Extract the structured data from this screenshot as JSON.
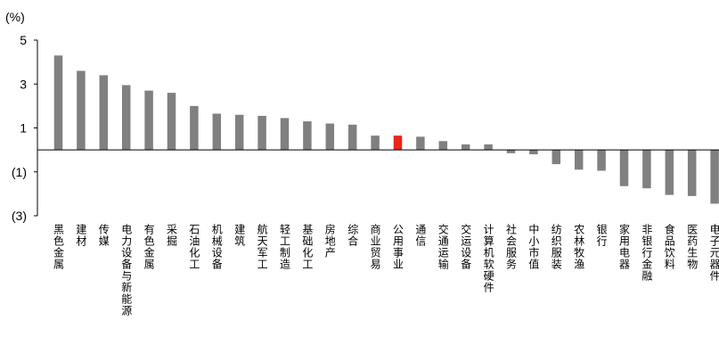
{
  "chart_data": {
    "type": "bar",
    "unit_label": "(%)",
    "title": "",
    "xlabel": "",
    "ylabel": "",
    "ylim": [
      -3,
      5
    ],
    "yticks": [
      5,
      3,
      1,
      -1,
      -3
    ],
    "ytick_labels": [
      "5",
      "3",
      "1",
      "(1)",
      "(3)"
    ],
    "grid": false,
    "legend": "none",
    "colors": {
      "default": "#808080",
      "highlight": "#e8261a"
    },
    "highlight_category": "公用事业",
    "categories": [
      "黑色金属",
      "建材",
      "传媒",
      "电力设备与新能源",
      "有色金属",
      "采掘",
      "石油化工",
      "机械设备",
      "建筑",
      "航天军工",
      "轻工制造",
      "基础化工",
      "房地产",
      "综合",
      "商业贸易",
      "公用事业",
      "通信",
      "交通运输",
      "交运设备",
      "计算机软硬件",
      "社会服务",
      "中小市值",
      "纺织服装",
      "农林牧渔",
      "银行",
      "家用电器",
      "非银行金融",
      "食品饮料",
      "医药生物",
      "电子元器件"
    ],
    "values": [
      4.3,
      3.6,
      3.4,
      2.95,
      2.7,
      2.6,
      2.0,
      1.65,
      1.6,
      1.55,
      1.45,
      1.3,
      1.2,
      1.15,
      0.65,
      0.65,
      0.6,
      0.4,
      0.25,
      0.25,
      -0.15,
      -0.2,
      -0.65,
      -0.9,
      -0.95,
      -1.65,
      -1.75,
      -2.05,
      -2.1,
      -2.45
    ]
  }
}
